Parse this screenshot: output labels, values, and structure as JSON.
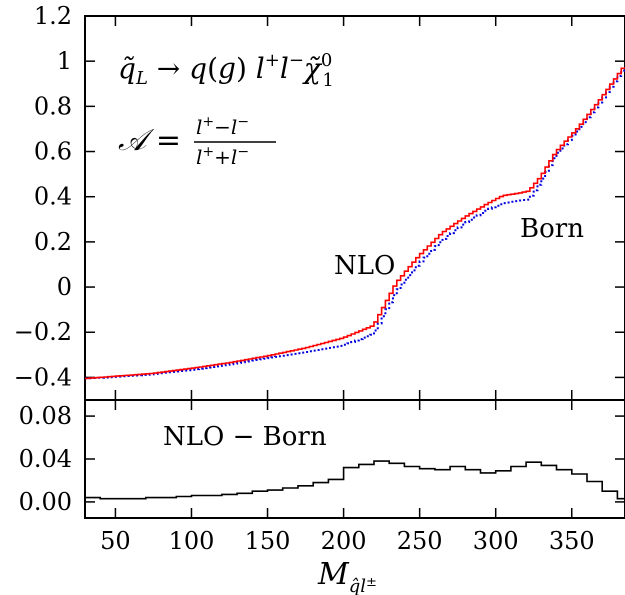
{
  "chart_data": [
    {
      "type": "line",
      "panel": "main",
      "title": "",
      "xlabel": "",
      "ylabel": "",
      "xlim": [
        30,
        385
      ],
      "ylim": [
        -0.5,
        1.2
      ],
      "xticks": [
        "50",
        "100",
        "150",
        "200",
        "250",
        "300",
        "350"
      ],
      "xtick_values": [
        50,
        100,
        150,
        200,
        250,
        300,
        350
      ],
      "yticks": [
        "−0.4",
        "−0.2",
        "0",
        "0.2",
        "0.4",
        "0.6",
        "0.8",
        "1",
        "1.2"
      ],
      "ytick_values": [
        -0.4,
        -0.2,
        0,
        0.2,
        0.4,
        0.6,
        0.8,
        1,
        1.2
      ],
      "grid": false,
      "annotations": {
        "process": "q̃_L → q(g) l⁺l⁻ χ̃₁⁰",
        "asymmetry": "𝒜 = (l⁺ − l⁻)/(l⁺ + l⁻)",
        "nlo_label": "NLO",
        "born_label": "Born"
      },
      "series": [
        {
          "name": "NLO",
          "color": "#ff0000",
          "style": "solid-step",
          "x": [
            30,
            50,
            75,
            100,
            125,
            150,
            175,
            200,
            220,
            235,
            250,
            265,
            280,
            295,
            305,
            315,
            322,
            330,
            340,
            355,
            370,
            385
          ],
          "y": [
            -0.405,
            -0.395,
            -0.382,
            -0.36,
            -0.335,
            -0.305,
            -0.27,
            -0.225,
            -0.17,
            0.02,
            0.14,
            0.24,
            0.31,
            0.37,
            0.405,
            0.415,
            0.425,
            0.49,
            0.6,
            0.71,
            0.84,
            0.98
          ]
        },
        {
          "name": "Born",
          "color": "#0000dd",
          "style": "dotted-step",
          "x": [
            30,
            50,
            75,
            100,
            125,
            150,
            175,
            200,
            220,
            235,
            250,
            265,
            280,
            295,
            305,
            315,
            322,
            330,
            340,
            355,
            370,
            385
          ],
          "y": [
            -0.405,
            -0.398,
            -0.386,
            -0.367,
            -0.343,
            -0.316,
            -0.289,
            -0.259,
            -0.208,
            -0.02,
            0.105,
            0.207,
            0.283,
            0.343,
            0.37,
            0.382,
            0.388,
            0.465,
            0.585,
            0.698,
            0.828,
            0.97
          ]
        }
      ]
    },
    {
      "type": "line",
      "panel": "difference",
      "title": "",
      "xlabel": "M_{q̂l±}",
      "ylabel": "",
      "xlim": [
        30,
        385
      ],
      "ylim": [
        -0.015,
        0.095
      ],
      "xticks": [
        "50",
        "100",
        "150",
        "200",
        "250",
        "300",
        "350"
      ],
      "xtick_values": [
        50,
        100,
        150,
        200,
        250,
        300,
        350
      ],
      "yticks": [
        "0.00",
        "0.04",
        "0.08"
      ],
      "ytick_values": [
        0.0,
        0.04,
        0.08
      ],
      "grid": false,
      "annotations": {
        "diff_label": "NLO − Born"
      },
      "series": [
        {
          "name": "NLO − Born",
          "color": "#000000",
          "style": "step",
          "x": [
            30,
            40,
            50,
            60,
            70,
            80,
            90,
            100,
            110,
            120,
            130,
            140,
            150,
            160,
            170,
            180,
            190,
            200,
            210,
            220,
            230,
            240,
            250,
            260,
            270,
            280,
            290,
            300,
            310,
            320,
            330,
            340,
            350,
            360,
            370,
            380
          ],
          "y": [
            0.004,
            0.003,
            0.003,
            0.003,
            0.004,
            0.004,
            0.005,
            0.006,
            0.006,
            0.007,
            0.008,
            0.01,
            0.011,
            0.013,
            0.015,
            0.018,
            0.021,
            0.032,
            0.035,
            0.038,
            0.036,
            0.033,
            0.031,
            0.03,
            0.033,
            0.03,
            0.027,
            0.029,
            0.033,
            0.037,
            0.034,
            0.03,
            0.026,
            0.019,
            0.01,
            0.003
          ]
        }
      ]
    }
  ]
}
